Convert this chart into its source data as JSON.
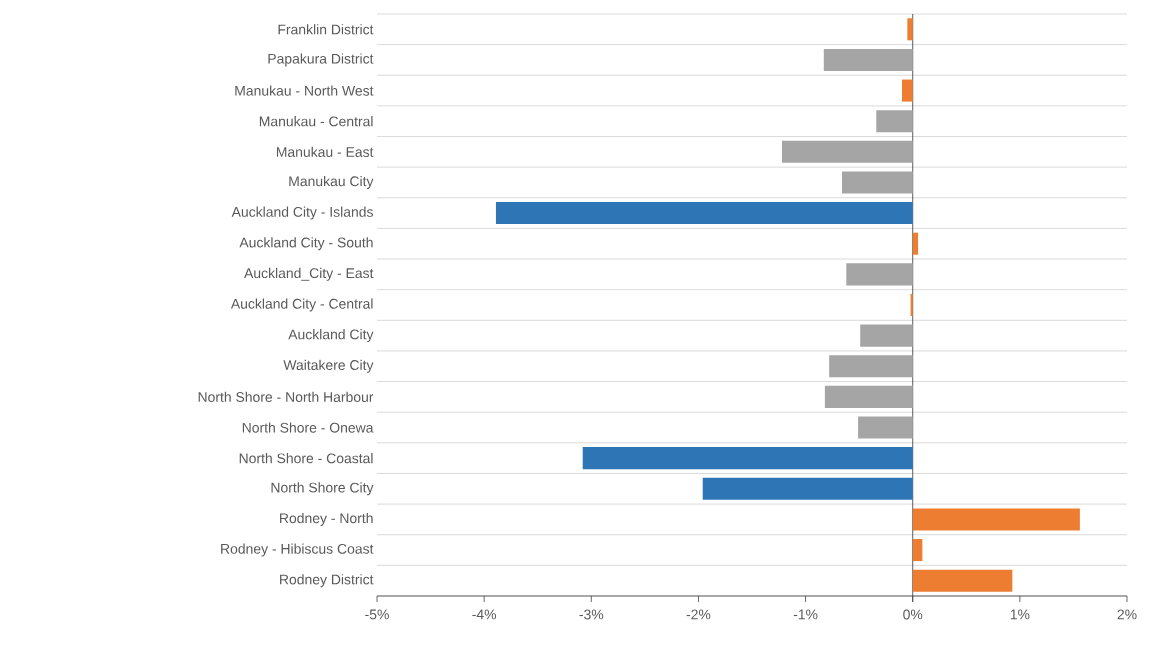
{
  "chart_data": {
    "type": "bar",
    "orientation": "horizontal",
    "categories": [
      "Franklin District",
      "Papakura District",
      "Manukau - North West",
      "Manukau - Central",
      "Manukau - East",
      "Manukau City",
      "Auckland City - Islands",
      "Auckland City - South",
      "Auckland_City - East",
      "Auckland City - Central",
      "Auckland City",
      "Waitakere City",
      "North Shore - North Harbour",
      "North Shore - Onewa",
      "North Shore - Coastal",
      "North Shore City",
      "Rodney - North",
      "Rodney - Hibiscus Coast",
      "Rodney District"
    ],
    "values": [
      -0.05,
      -0.83,
      -0.1,
      -0.34,
      -1.22,
      -0.66,
      -3.89,
      0.05,
      -0.62,
      -0.02,
      -0.49,
      -0.78,
      -0.82,
      -0.51,
      -3.08,
      -1.96,
      1.56,
      0.09,
      0.93
    ],
    "colors": [
      "#ed7d31",
      "#a5a5a5",
      "#ed7d31",
      "#a5a5a5",
      "#a5a5a5",
      "#a5a5a5",
      "#2e75b6",
      "#ed7d31",
      "#a5a5a5",
      "#ed7d31",
      "#a5a5a5",
      "#a5a5a5",
      "#a5a5a5",
      "#a5a5a5",
      "#2e75b6",
      "#2e75b6",
      "#ed7d31",
      "#ed7d31",
      "#ed7d31"
    ],
    "xlim": [
      -5,
      2
    ],
    "xticks": [
      {
        "value": -5,
        "label": "-5%"
      },
      {
        "value": -4,
        "label": "-4%"
      },
      {
        "value": -3,
        "label": "-3%"
      },
      {
        "value": -2,
        "label": "-2%"
      },
      {
        "value": -1,
        "label": "-1%"
      },
      {
        "value": 0,
        "label": "0%"
      },
      {
        "value": 1,
        "label": "1%"
      },
      {
        "value": 2,
        "label": "2%"
      }
    ],
    "grid": "y"
  }
}
